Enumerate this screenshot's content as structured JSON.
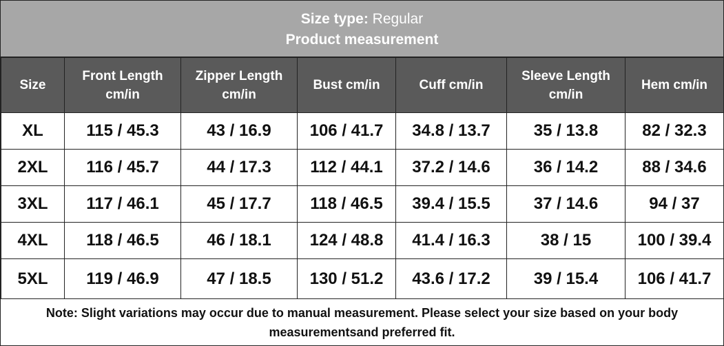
{
  "title": {
    "label": "Size type:",
    "value": "Regular"
  },
  "subtitle": "Product measurement",
  "table": {
    "headers": [
      "Size",
      "Front Length cm/in",
      "Zipper Length cm/in",
      "Bust cm/in",
      "Cuff cm/in",
      "Sleeve Length cm/in",
      "Hem cm/in"
    ],
    "rows": [
      [
        "XL",
        "115 / 45.3",
        "43 / 16.9",
        "106 / 41.7",
        "34.8 / 13.7",
        "35 / 13.8",
        "82 / 32.3"
      ],
      [
        "2XL",
        "116 / 45.7",
        "44 / 17.3",
        "112 / 44.1",
        "37.2 / 14.6",
        "36 / 14.2",
        "88 / 34.6"
      ],
      [
        "3XL",
        "117 / 46.1",
        "45 / 17.7",
        "118 / 46.5",
        "39.4 / 15.5",
        "37 / 14.6",
        "94 / 37"
      ],
      [
        "4XL",
        "118 / 46.5",
        "46 / 18.1",
        "124 / 48.8",
        "41.4 / 16.3",
        "38 / 15",
        "100 / 39.4"
      ],
      [
        "5XL",
        "119 / 46.9",
        "47 / 18.5",
        "130 / 51.2",
        "43.6 / 17.2",
        "39 / 15.4",
        "106 / 41.7"
      ]
    ]
  },
  "note": "Note: Slight variations may occur due to manual measurement. Please select your size based on your body measurementsand preferred fit."
}
